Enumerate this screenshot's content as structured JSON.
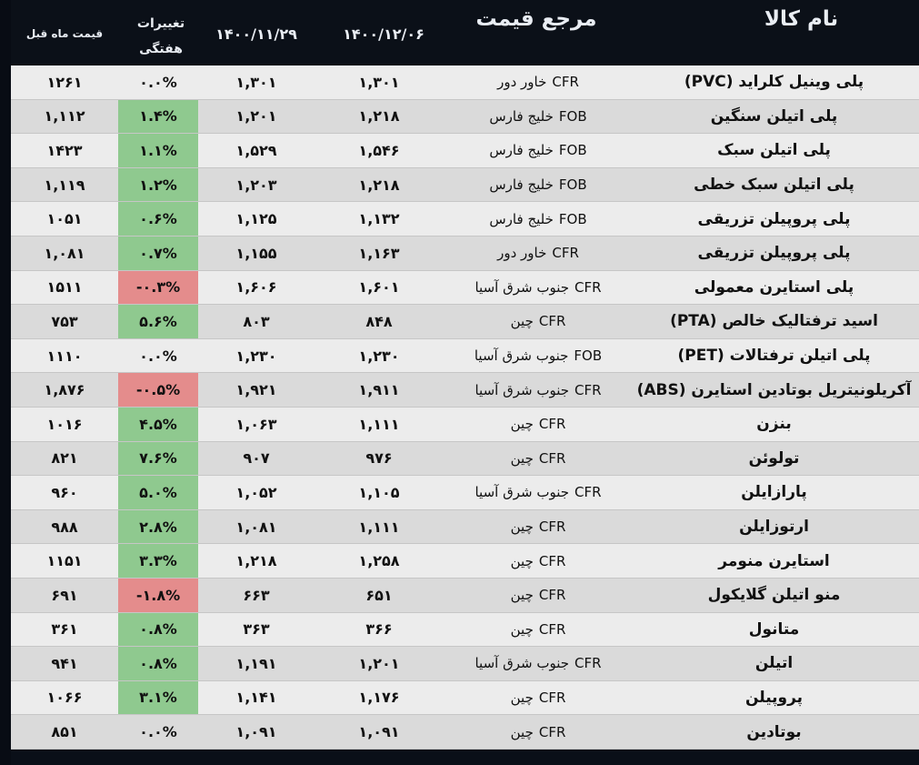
{
  "header": {
    "name": "نام کالا",
    "reference": "مرجع قیمت",
    "date_current": "۱۴۰۰/۱۲/۰۶",
    "date_prev_week": "۱۴۰۰/۱۱/۲۹",
    "change_line1": "تغییرات",
    "change_line2": "هفتگی",
    "prev_month": "قیمت ماه قبل"
  },
  "rows": [
    {
      "name": "پلی وینیل کلراید (PVC)",
      "term": "CFR",
      "place": "خاور دور",
      "p1": "۱,۳۰۱",
      "p2": "۱,۳۰۱",
      "chg": "۰.۰%",
      "chg_sign": "zero",
      "prev": "۱۲۶۱"
    },
    {
      "name": "پلی اتیلن سنگین",
      "term": "FOB",
      "place": "خلیج فارس",
      "p1": "۱,۲۱۸",
      "p2": "۱,۲۰۱",
      "chg": "۱.۴%",
      "chg_sign": "pos",
      "prev": "۱,۱۱۲"
    },
    {
      "name": "پلی اتیلن سبک",
      "term": "FOB",
      "place": "خلیج فارس",
      "p1": "۱,۵۴۶",
      "p2": "۱,۵۲۹",
      "chg": "۱.۱%",
      "chg_sign": "pos",
      "prev": "۱۴۲۳"
    },
    {
      "name": "پلی اتیلن سبک خطی",
      "term": "FOB",
      "place": "خلیج فارس",
      "p1": "۱,۲۱۸",
      "p2": "۱,۲۰۳",
      "chg": "۱.۲%",
      "chg_sign": "pos",
      "prev": "۱,۱۱۹"
    },
    {
      "name": "پلی پروپیلن تزریقی",
      "term": "FOB",
      "place": "خلیج فارس",
      "p1": "۱,۱۳۲",
      "p2": "۱,۱۲۵",
      "chg": "۰.۶%",
      "chg_sign": "pos",
      "prev": "۱۰۵۱"
    },
    {
      "name": "پلی پروپیلن تزریقی",
      "term": "CFR",
      "place": "خاور دور",
      "p1": "۱,۱۶۳",
      "p2": "۱,۱۵۵",
      "chg": "۰.۷%",
      "chg_sign": "pos",
      "prev": "۱,۰۸۱"
    },
    {
      "name": "پلی استایرن معمولی",
      "term": "CFR",
      "place": "جنوب شرق آسیا",
      "p1": "۱,۶۰۱",
      "p2": "۱,۶۰۶",
      "chg": "-۰.۳%",
      "chg_sign": "neg",
      "prev": "۱۵۱۱"
    },
    {
      "name": "اسید ترفتالیک خالص (PTA)",
      "term": "CFR",
      "place": "چین",
      "p1": "۸۴۸",
      "p2": "۸۰۳",
      "chg": "۵.۶%",
      "chg_sign": "pos",
      "prev": "۷۵۳"
    },
    {
      "name": "پلی اتیلن ترفتالات (PET)",
      "term": "FOB",
      "place": "جنوب شرق آسیا",
      "p1": "۱,۲۳۰",
      "p2": "۱,۲۳۰",
      "chg": "۰.۰%",
      "chg_sign": "zero",
      "prev": "۱۱۱۰"
    },
    {
      "name": "آکریلونیتریل بوتادین استایرن (ABS)",
      "term": "CFR",
      "place": "جنوب شرق آسیا",
      "p1": "۱,۹۱۱",
      "p2": "۱,۹۲۱",
      "chg": "-۰.۵%",
      "chg_sign": "neg",
      "prev": "۱,۸۷۶"
    },
    {
      "name": "بنزن",
      "term": "CFR",
      "place": "چین",
      "p1": "۱,۱۱۱",
      "p2": "۱,۰۶۳",
      "chg": "۴.۵%",
      "chg_sign": "pos",
      "prev": "۱۰۱۶"
    },
    {
      "name": "تولوئن",
      "term": "CFR",
      "place": "چین",
      "p1": "۹۷۶",
      "p2": "۹۰۷",
      "chg": "۷.۶%",
      "chg_sign": "pos",
      "prev": "۸۲۱"
    },
    {
      "name": "پارازایلن",
      "term": "CFR",
      "place": "جنوب شرق آسیا",
      "p1": "۱,۱۰۵",
      "p2": "۱,۰۵۲",
      "chg": "۵.۰%",
      "chg_sign": "pos",
      "prev": "۹۶۰"
    },
    {
      "name": "ارتوزایلن",
      "term": "CFR",
      "place": "چین",
      "p1": "۱,۱۱۱",
      "p2": "۱,۰۸۱",
      "chg": "۲.۸%",
      "chg_sign": "pos",
      "prev": "۹۸۸"
    },
    {
      "name": "استایرن منومر",
      "term": "CFR",
      "place": "چین",
      "p1": "۱,۲۵۸",
      "p2": "۱,۲۱۸",
      "chg": "۳.۳%",
      "chg_sign": "pos",
      "prev": "۱۱۵۱"
    },
    {
      "name": "منو اتیلن گلایکول",
      "term": "CFR",
      "place": "چین",
      "p1": "۶۵۱",
      "p2": "۶۶۳",
      "chg": "-۱.۸%",
      "chg_sign": "neg",
      "prev": "۶۹۱"
    },
    {
      "name": "متانول",
      "term": "CFR",
      "place": "چین",
      "p1": "۳۶۶",
      "p2": "۳۶۳",
      "chg": "۰.۸%",
      "chg_sign": "pos",
      "prev": "۳۶۱"
    },
    {
      "name": "اتیلن",
      "term": "CFR",
      "place": "جنوب شرق آسیا",
      "p1": "۱,۲۰۱",
      "p2": "۱,۱۹۱",
      "chg": "۰.۸%",
      "chg_sign": "pos",
      "prev": "۹۴۱"
    },
    {
      "name": "پروپیلن",
      "term": "CFR",
      "place": "چین",
      "p1": "۱,۱۷۶",
      "p2": "۱,۱۴۱",
      "chg": "۳.۱%",
      "chg_sign": "pos",
      "prev": "۱۰۶۶"
    },
    {
      "name": "بوتادین",
      "term": "CFR",
      "place": "چین",
      "p1": "۱,۰۹۱",
      "p2": "۱,۰۹۱",
      "chg": "۰.۰%",
      "chg_sign": "zero",
      "prev": "۸۵۱"
    }
  ],
  "colors": {
    "positive": "#8fc98f",
    "negative": "#e48c8c",
    "background": "#080c14"
  }
}
